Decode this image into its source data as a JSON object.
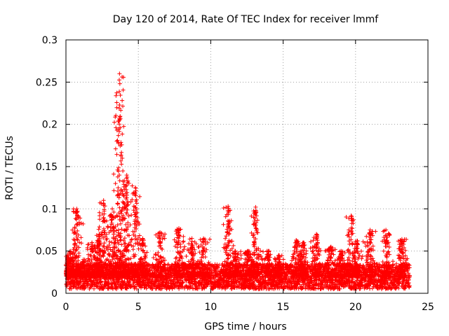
{
  "chart_data": {
    "type": "scatter",
    "title": "Day 120 of 2014, Rate Of TEC Index for receiver lmmf",
    "xlabel": "GPS time / hours",
    "ylabel": "ROTI / TECUs",
    "xlim": [
      0,
      25
    ],
    "ylim": [
      0,
      0.3
    ],
    "x_ticks": [
      0,
      5,
      10,
      15,
      20,
      25
    ],
    "y_ticks": [
      0,
      0.05,
      0.1,
      0.15,
      0.2,
      0.25,
      0.3
    ],
    "x_tick_labels": [
      "0",
      "5",
      "10",
      "15",
      "20",
      "25"
    ],
    "y_tick_labels": [
      "0",
      "0.05",
      "0.1",
      "0.15",
      "0.2",
      "0.25",
      "0.3"
    ],
    "grid": true,
    "marker": "+",
    "series": [
      {
        "name": "ROTI",
        "color": "#ff0000",
        "base_band": {
          "x_range": [
            0.0,
            23.75
          ],
          "y_range": [
            0.005,
            0.035
          ],
          "note": "dense band of points every ~30 s"
        },
        "bursts": [
          {
            "x": 0.1,
            "peak": 0.045
          },
          {
            "x": 0.3,
            "peak": 0.05
          },
          {
            "x": 0.75,
            "peak": 0.1
          },
          {
            "x": 1.2,
            "peak": 0.04
          },
          {
            "x": 1.8,
            "peak": 0.06
          },
          {
            "x": 2.3,
            "peak": 0.07
          },
          {
            "x": 2.6,
            "peak": 0.11
          },
          {
            "x": 3.2,
            "peak": 0.1
          },
          {
            "x": 3.7,
            "peak": 0.26
          },
          {
            "x": 4.2,
            "peak": 0.14
          },
          {
            "x": 4.8,
            "peak": 0.125
          },
          {
            "x": 5.3,
            "peak": 0.065
          },
          {
            "x": 6.5,
            "peak": 0.072
          },
          {
            "x": 7.8,
            "peak": 0.077
          },
          {
            "x": 8.7,
            "peak": 0.065
          },
          {
            "x": 9.5,
            "peak": 0.065
          },
          {
            "x": 11.2,
            "peak": 0.103
          },
          {
            "x": 11.7,
            "peak": 0.05
          },
          {
            "x": 12.6,
            "peak": 0.05
          },
          {
            "x": 13.1,
            "peak": 0.102
          },
          {
            "x": 14.0,
            "peak": 0.05
          },
          {
            "x": 14.7,
            "peak": 0.045
          },
          {
            "x": 15.9,
            "peak": 0.063
          },
          {
            "x": 16.4,
            "peak": 0.06
          },
          {
            "x": 17.3,
            "peak": 0.07
          },
          {
            "x": 18.3,
            "peak": 0.055
          },
          {
            "x": 19.0,
            "peak": 0.05
          },
          {
            "x": 19.7,
            "peak": 0.092
          },
          {
            "x": 20.1,
            "peak": 0.062
          },
          {
            "x": 21.0,
            "peak": 0.075
          },
          {
            "x": 22.1,
            "peak": 0.075
          },
          {
            "x": 23.2,
            "peak": 0.064
          }
        ]
      }
    ]
  }
}
